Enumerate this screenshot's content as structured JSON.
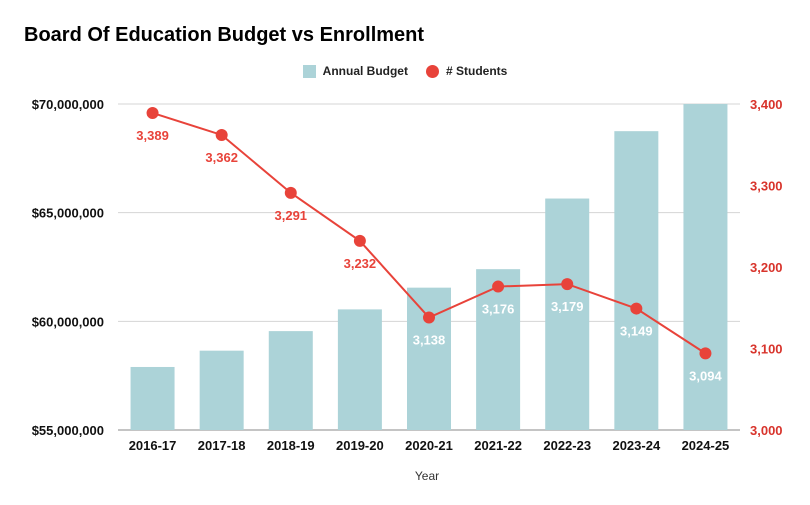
{
  "chart_data": {
    "type": "bar+line",
    "title": "Board Of Education Budget vs Enrollment",
    "xlabel": "Year",
    "categories": [
      "2016-17",
      "2017-18",
      "2018-19",
      "2019-20",
      "2020-21",
      "2021-22",
      "2022-23",
      "2023-24",
      "2024-25"
    ],
    "series": [
      {
        "name": "Annual Budget",
        "type": "bar",
        "axis": "left",
        "color": "#acd3d8",
        "values": [
          57900000,
          58650000,
          59550000,
          60550000,
          61550000,
          62400000,
          65650000,
          68750000,
          70000000
        ]
      },
      {
        "name": "# Students",
        "type": "line",
        "axis": "right",
        "color": "#e8433a",
        "values": [
          3389,
          3362,
          3291,
          3232,
          3138,
          3176,
          3179,
          3149,
          3094
        ],
        "labels": [
          "3,389",
          "3,362",
          "3,291",
          "3,232",
          "3,138",
          "3,176",
          "3,179",
          "3,149",
          "3,094"
        ]
      }
    ],
    "left_axis": {
      "ylim": [
        55000000,
        70000000
      ],
      "ticks": [
        55000000,
        60000000,
        65000000,
        70000000
      ],
      "tick_labels": [
        "$55,000,000",
        "$60,000,000",
        "$65,000,000",
        "$70,000,000"
      ]
    },
    "right_axis": {
      "ylim": [
        3000,
        3400
      ],
      "ticks": [
        3000,
        3100,
        3200,
        3300,
        3400
      ],
      "tick_labels": [
        "3,000",
        "3,100",
        "3,200",
        "3,300",
        "3,400"
      ],
      "color": "#d8342c"
    },
    "legend": {
      "placement": "top-center",
      "entries": [
        "Annual Budget",
        "# Students"
      ]
    },
    "grid": true
  }
}
